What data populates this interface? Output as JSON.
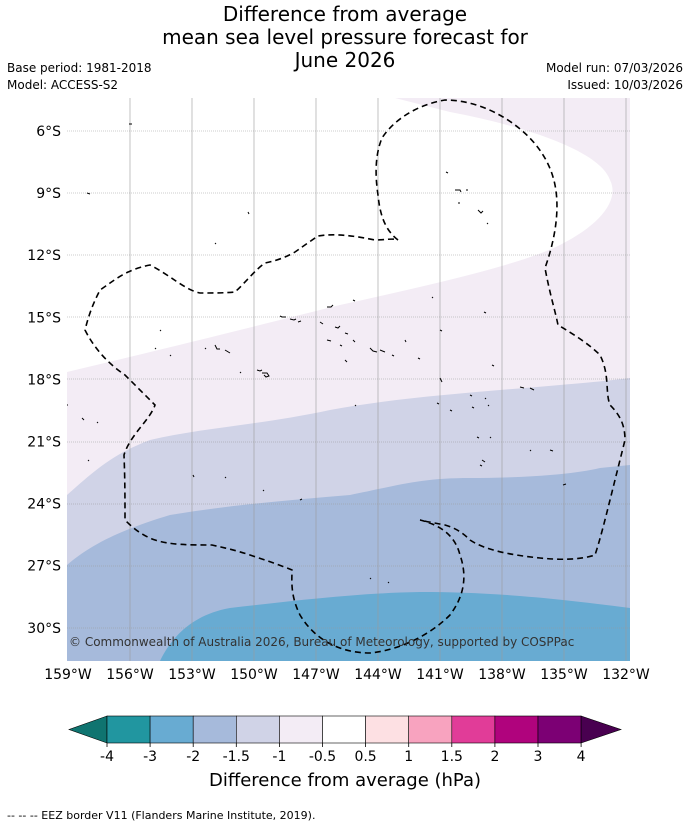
{
  "title": {
    "line1": "Difference from average",
    "line2": "mean sea level pressure forecast for",
    "line3": "June 2026"
  },
  "meta": {
    "base_period": "Base period: 1981-2018",
    "model": "Model: ACCESS-S2",
    "model_run": "Model run: 07/03/2026",
    "issued": "Issued: 10/03/2026"
  },
  "map": {
    "lat_labels": [
      "6°S",
      "9°S",
      "12°S",
      "15°S",
      "18°S",
      "21°S",
      "24°S",
      "27°S",
      "30°S"
    ],
    "lon_labels": [
      "159°W",
      "156°W",
      "153°W",
      "150°W",
      "147°W",
      "144°W",
      "141°W",
      "138°W",
      "135°W",
      "132°W"
    ],
    "copyright": "© Commonwealth of Australia 2026, Bureau of Meteorology, supported by COSPPac"
  },
  "colorbar": {
    "label": "Difference from average (hPa)",
    "ticks": [
      "-4",
      "-3",
      "-2",
      "-1.5",
      "-1",
      "-0.5",
      "0.5",
      "1",
      "1.5",
      "2",
      "3",
      "4"
    ],
    "colors": [
      "#0f7470",
      "#2196a0",
      "#68abd2",
      "#a6badb",
      "#d0d3e7",
      "#f3ecf5",
      "#ffffff",
      "#fde0e3",
      "#f8a3bf",
      "#e13c98",
      "#b0037d",
      "#7c0074",
      "#490050"
    ]
  },
  "footnote": "-- -- -- EEZ border V11 (Flanders Marine Institute, 2019)."
}
